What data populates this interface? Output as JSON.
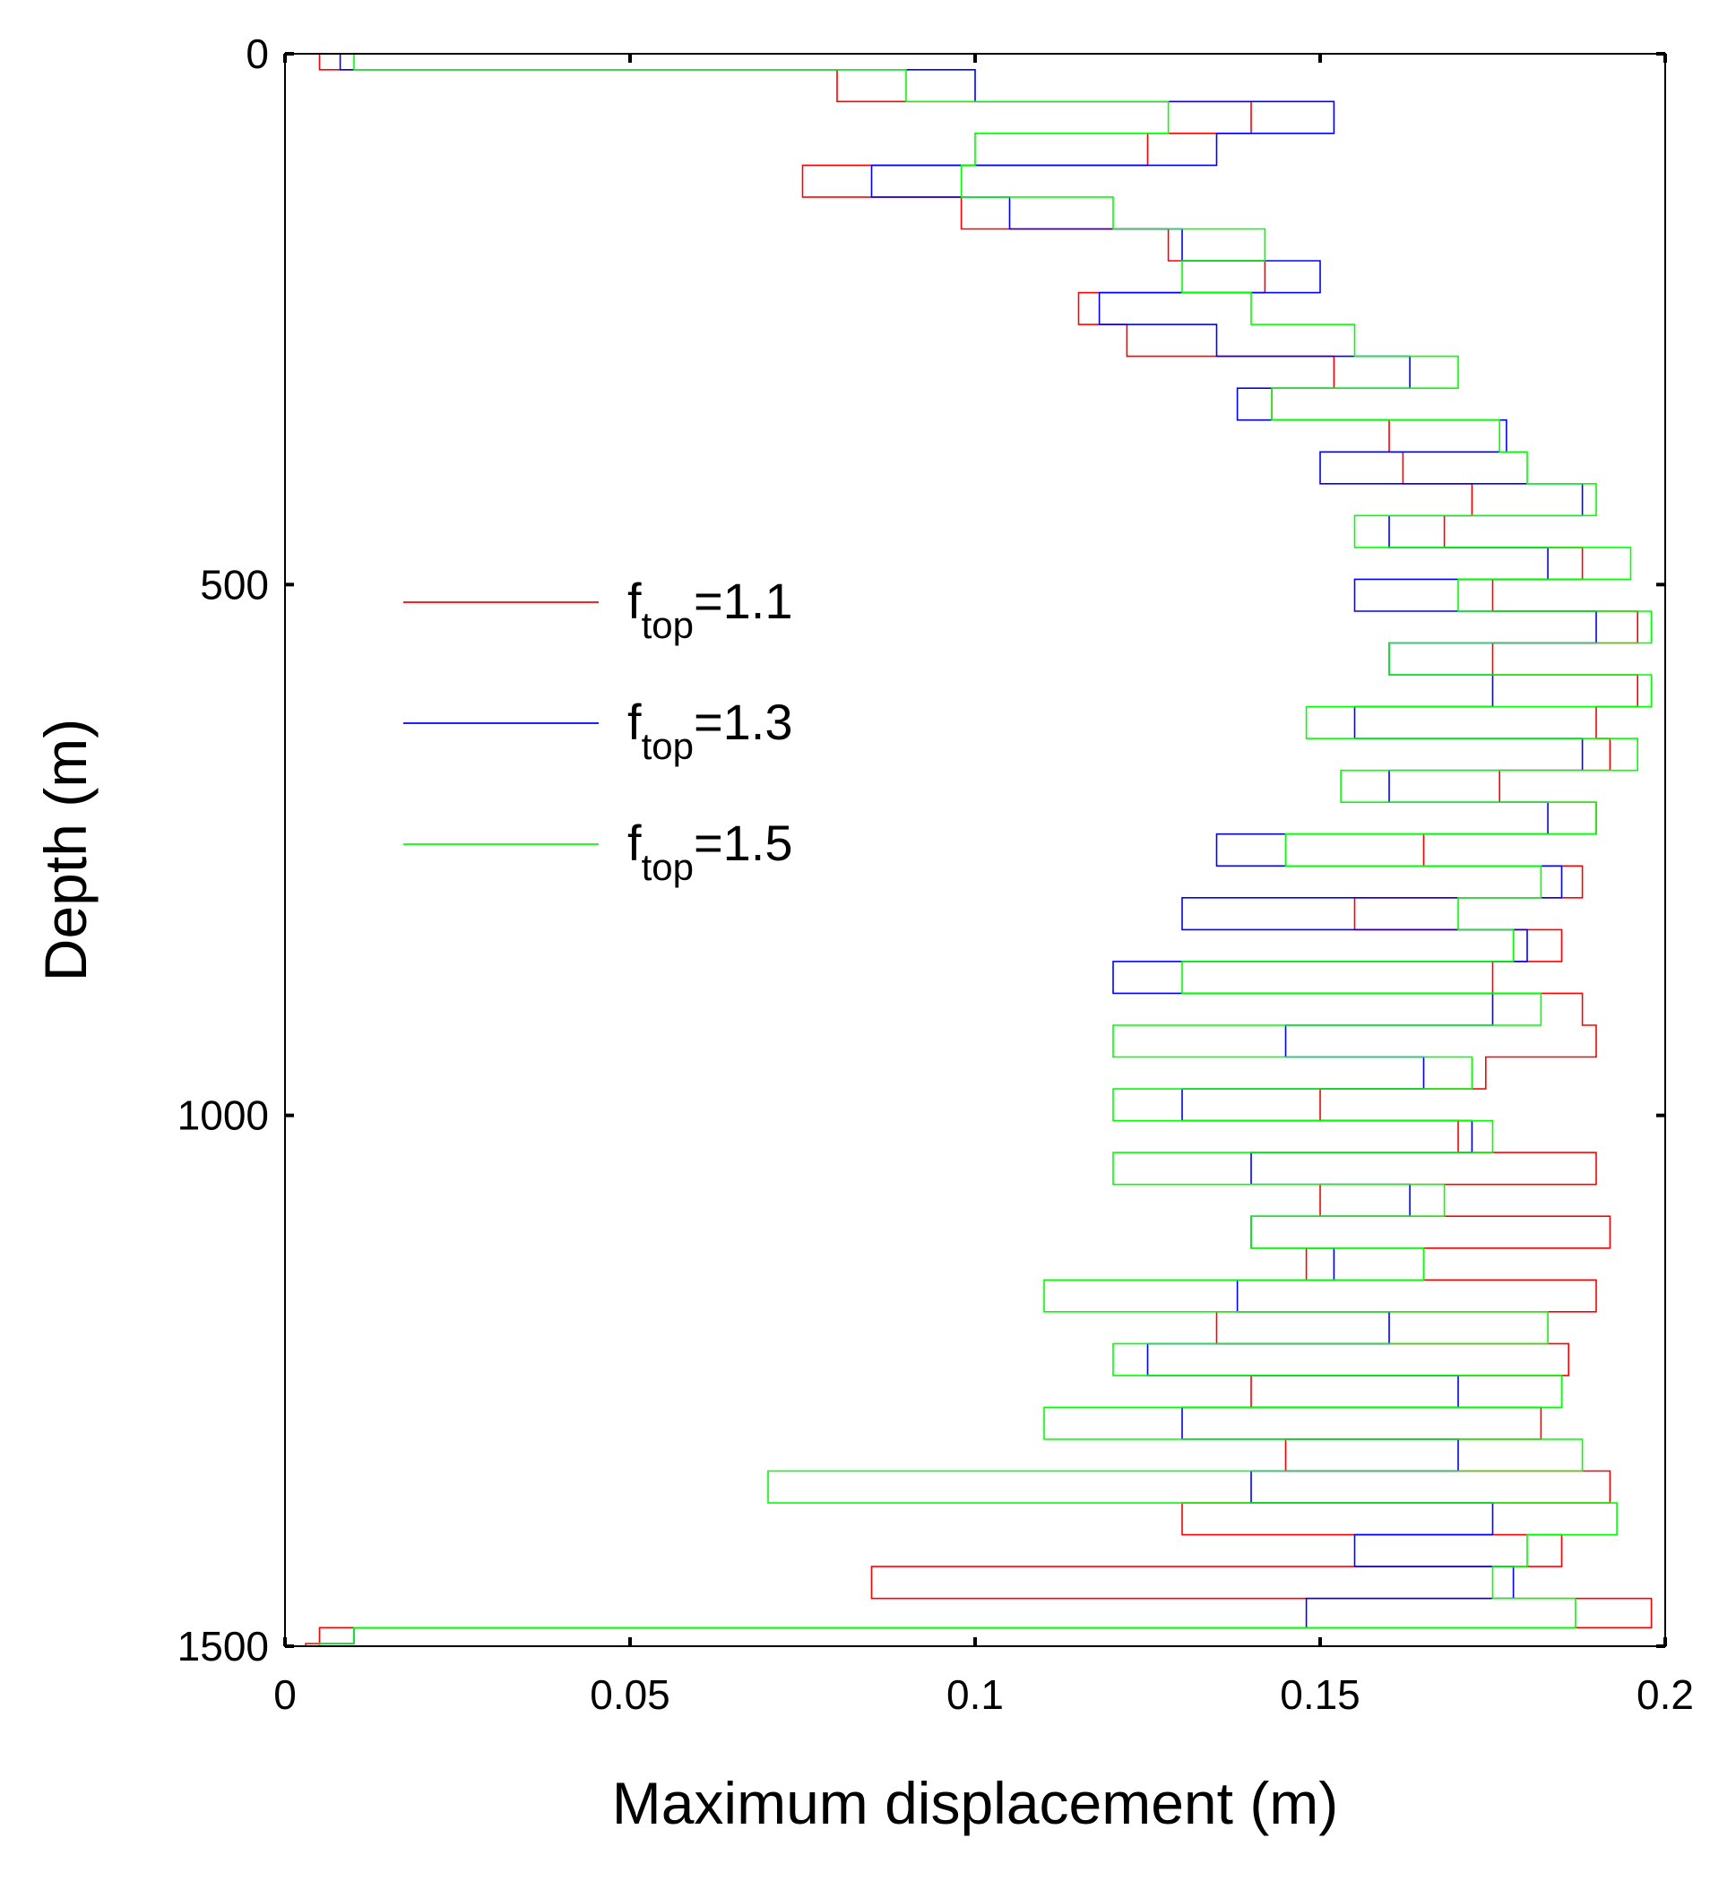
{
  "chart_data": {
    "type": "line",
    "xlabel": "Maximum displacement (m)",
    "ylabel": "Depth (m)",
    "xlim": [
      0,
      0.2
    ],
    "ylim": [
      0,
      1500
    ],
    "y_reversed": true,
    "xticks": [
      0,
      0.05,
      0.1,
      0.15,
      0.2
    ],
    "xtick_labels": [
      "0",
      "0.05",
      "0.1",
      "0.15",
      "0.2"
    ],
    "yticks": [
      0,
      500,
      1000,
      1500
    ],
    "ytick_labels": [
      "0",
      "500",
      "1000",
      "1500"
    ],
    "grid": false,
    "legend_position": "center-left",
    "series": [
      {
        "name_base": "f",
        "name_sub": "top",
        "name_value": "=1.1",
        "color": "#ff0000",
        "depth": [
          0,
          30,
          60,
          90,
          120,
          150,
          180,
          210,
          240,
          270,
          300,
          330,
          360,
          390,
          420,
          450,
          480,
          510,
          540,
          570,
          600,
          630,
          660,
          690,
          720,
          750,
          780,
          810,
          840,
          870,
          900,
          930,
          960,
          990,
          1020,
          1050,
          1080,
          1110,
          1140,
          1170,
          1200,
          1230,
          1260,
          1290,
          1320,
          1350,
          1380,
          1410,
          1440,
          1470,
          1495,
          1500
        ],
        "displacement": [
          0.005,
          0.08,
          0.14,
          0.125,
          0.075,
          0.098,
          0.128,
          0.142,
          0.115,
          0.122,
          0.152,
          0.143,
          0.16,
          0.162,
          0.172,
          0.168,
          0.188,
          0.175,
          0.196,
          0.175,
          0.196,
          0.19,
          0.192,
          0.176,
          0.19,
          0.165,
          0.188,
          0.155,
          0.185,
          0.175,
          0.188,
          0.19,
          0.174,
          0.15,
          0.17,
          0.19,
          0.15,
          0.192,
          0.148,
          0.19,
          0.135,
          0.186,
          0.14,
          0.182,
          0.145,
          0.192,
          0.13,
          0.185,
          0.085,
          0.198,
          0.005,
          0.003
        ]
      },
      {
        "name_base": "f",
        "name_sub": "top",
        "name_value": "=1.3",
        "color": "#0000ff",
        "depth": [
          0,
          30,
          60,
          90,
          120,
          150,
          180,
          210,
          240,
          270,
          300,
          330,
          360,
          390,
          420,
          450,
          480,
          510,
          540,
          570,
          600,
          630,
          660,
          690,
          720,
          750,
          780,
          810,
          840,
          870,
          900,
          930,
          960,
          990,
          1020,
          1050,
          1080,
          1110,
          1140,
          1170,
          1200,
          1230,
          1260,
          1290,
          1320,
          1350,
          1380,
          1410,
          1440,
          1470,
          1495,
          1500
        ],
        "displacement": [
          0.008,
          0.1,
          0.152,
          0.135,
          0.085,
          0.105,
          0.13,
          0.15,
          0.118,
          0.135,
          0.163,
          0.138,
          0.177,
          0.15,
          0.188,
          0.16,
          0.183,
          0.155,
          0.19,
          0.16,
          0.175,
          0.155,
          0.188,
          0.16,
          0.183,
          0.135,
          0.185,
          0.13,
          0.18,
          0.12,
          0.175,
          0.145,
          0.165,
          0.13,
          0.172,
          0.14,
          0.163,
          0.14,
          0.152,
          0.138,
          0.16,
          0.125,
          0.17,
          0.13,
          0.17,
          0.14,
          0.175,
          0.155,
          0.178,
          0.148,
          0.01,
          0.005
        ]
      },
      {
        "name_base": "f",
        "name_sub": "top",
        "name_value": "=1.5",
        "color": "#00ff00",
        "depth": [
          0,
          30,
          60,
          90,
          120,
          150,
          180,
          210,
          240,
          270,
          300,
          330,
          360,
          390,
          420,
          450,
          480,
          510,
          540,
          570,
          600,
          630,
          660,
          690,
          720,
          750,
          780,
          810,
          840,
          870,
          900,
          930,
          960,
          990,
          1020,
          1050,
          1080,
          1110,
          1140,
          1170,
          1200,
          1230,
          1260,
          1290,
          1320,
          1350,
          1380,
          1410,
          1440,
          1470,
          1495,
          1500
        ],
        "displacement": [
          0.01,
          0.09,
          0.128,
          0.1,
          0.098,
          0.12,
          0.142,
          0.13,
          0.14,
          0.155,
          0.17,
          0.143,
          0.176,
          0.18,
          0.19,
          0.155,
          0.195,
          0.17,
          0.198,
          0.16,
          0.198,
          0.148,
          0.196,
          0.153,
          0.19,
          0.145,
          0.182,
          0.17,
          0.178,
          0.13,
          0.182,
          0.12,
          0.172,
          0.12,
          0.175,
          0.12,
          0.168,
          0.14,
          0.165,
          0.11,
          0.183,
          0.12,
          0.185,
          0.11,
          0.188,
          0.07,
          0.193,
          0.18,
          0.175,
          0.187,
          0.01,
          0.005
        ]
      }
    ]
  }
}
